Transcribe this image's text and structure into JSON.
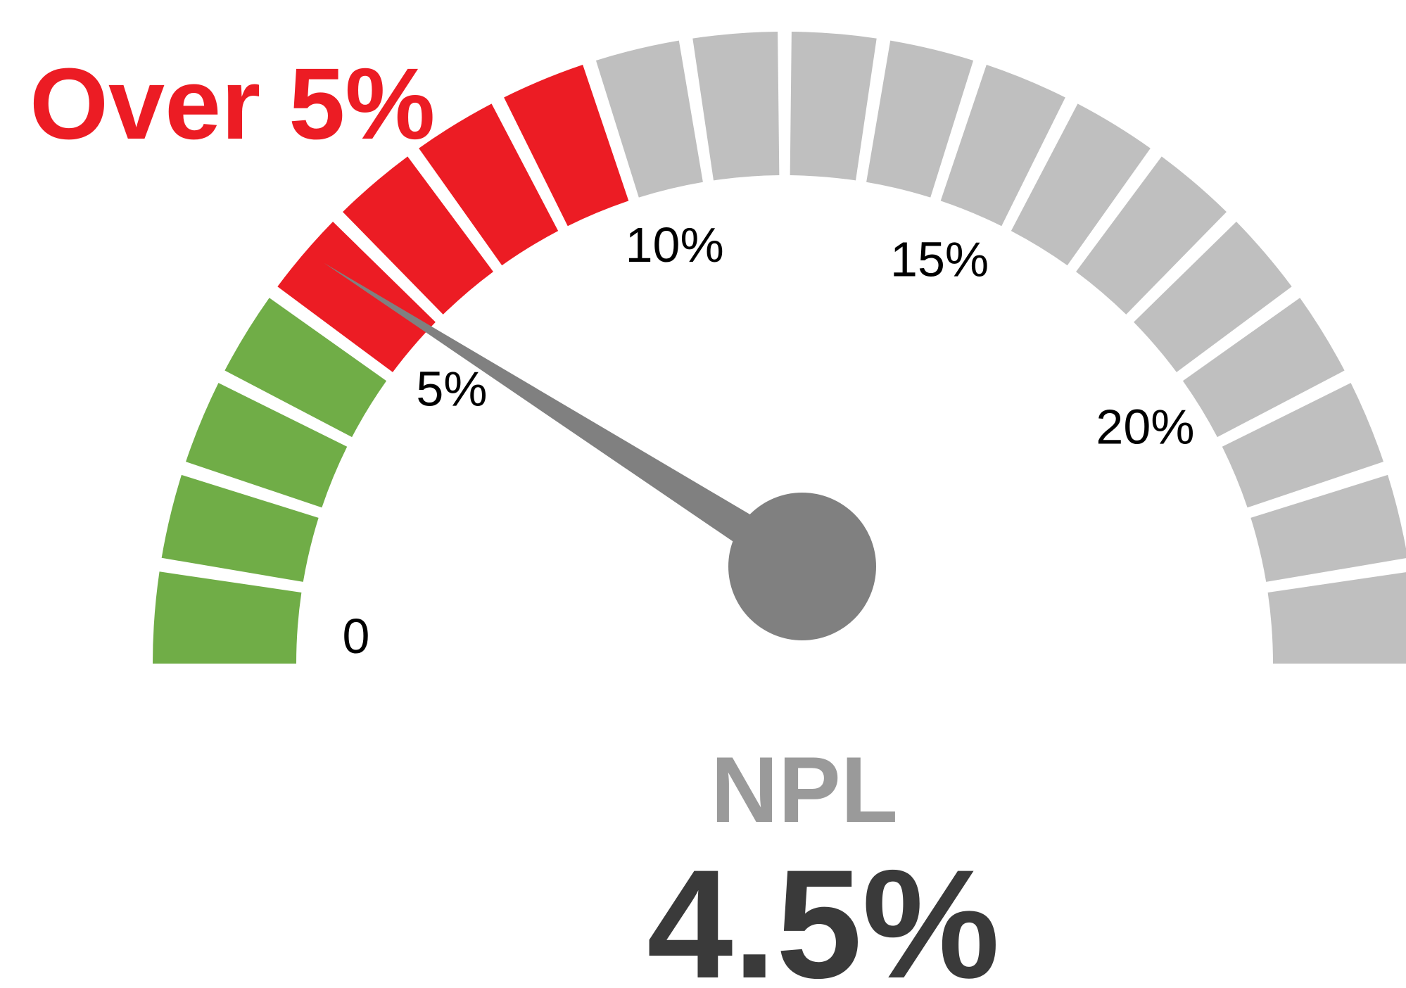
{
  "chart_data": {
    "type": "gauge",
    "title": "Over 5%",
    "label": "NPL",
    "value": 4.5,
    "value_label": "4.5%",
    "lim": [
      0,
      25
    ],
    "ticks": [
      0,
      {
        "value": 5,
        "label": "5%"
      },
      {
        "value": 10,
        "label": "10%"
      },
      {
        "value": 15,
        "label": "15%"
      },
      {
        "value": 20,
        "label": "20%"
      }
    ],
    "segments": 20,
    "bands": [
      {
        "from": 0,
        "to": 5,
        "color": "#70ad47"
      },
      {
        "from": 5,
        "to": 10,
        "color": "#ec1c24"
      },
      {
        "from": 10,
        "to": 25,
        "color": "#bfbfbf"
      }
    ],
    "title_color": "#ec1c24",
    "label_color": "#9a9a9a",
    "value_color": "#3a3a3a",
    "needle_color": "#808080"
  }
}
